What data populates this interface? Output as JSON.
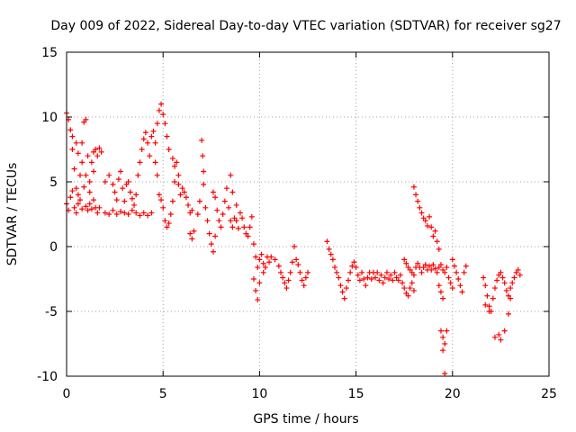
{
  "chart_data": {
    "type": "scatter",
    "title": "Day 009 of 2022, Sidereal Day-to-day VTEC variation (SDTVAR) for receiver sg27",
    "xlabel": "GPS time / hours",
    "ylabel": "SDTVAR / TECUs",
    "xlim": [
      0,
      25
    ],
    "ylim": [
      -10,
      15
    ],
    "xticks": [
      0,
      5,
      10,
      15,
      20,
      25
    ],
    "yticks": [
      -10,
      -5,
      0,
      5,
      10,
      15
    ],
    "xtick_labels": [
      "0",
      "5",
      "10",
      "15",
      "20",
      "25"
    ],
    "ytick_labels": [
      "-10",
      "-5",
      "0",
      "5",
      "10",
      "15"
    ],
    "grid": true,
    "marker": "+",
    "marker_color": "#ff0000",
    "series": [
      {
        "name": "SDTVAR",
        "points": [
          [
            0.0,
            10.3
          ],
          [
            0.1,
            9.8
          ],
          [
            0.2,
            9.0
          ],
          [
            0.3,
            7.5
          ],
          [
            0.4,
            6.0
          ],
          [
            0.5,
            4.5
          ],
          [
            0.6,
            3.3
          ],
          [
            0.7,
            5.5
          ],
          [
            0.8,
            8.0
          ],
          [
            0.9,
            9.6
          ],
          [
            1.0,
            9.8
          ],
          [
            1.1,
            7.0
          ],
          [
            1.2,
            5.0
          ],
          [
            1.3,
            6.5
          ],
          [
            1.4,
            7.3
          ],
          [
            1.5,
            7.5
          ],
          [
            1.6,
            7.0
          ],
          [
            1.7,
            7.6
          ],
          [
            1.8,
            7.3
          ],
          [
            0.0,
            3.3
          ],
          [
            0.1,
            2.8
          ],
          [
            0.2,
            3.8
          ],
          [
            0.3,
            4.3
          ],
          [
            0.4,
            3.0
          ],
          [
            0.5,
            2.6
          ],
          [
            0.6,
            4.0
          ],
          [
            0.7,
            3.6
          ],
          [
            0.8,
            2.9
          ],
          [
            0.9,
            4.6
          ],
          [
            1.0,
            3.1
          ],
          [
            1.1,
            2.8
          ],
          [
            1.2,
            3.3
          ],
          [
            1.3,
            2.9
          ],
          [
            1.4,
            3.6
          ],
          [
            1.5,
            3.0
          ],
          [
            1.6,
            2.6
          ],
          [
            1.7,
            3.0
          ],
          [
            0.3,
            8.5
          ],
          [
            0.5,
            8.0
          ],
          [
            0.6,
            7.2
          ],
          [
            0.8,
            6.5
          ],
          [
            1.0,
            5.5
          ],
          [
            1.2,
            4.2
          ],
          [
            1.4,
            5.8
          ],
          [
            2.0,
            2.6
          ],
          [
            2.2,
            2.5
          ],
          [
            2.4,
            2.8
          ],
          [
            2.6,
            2.5
          ],
          [
            2.8,
            2.7
          ],
          [
            3.0,
            2.6
          ],
          [
            3.2,
            2.5
          ],
          [
            3.4,
            2.8
          ],
          [
            3.6,
            2.6
          ],
          [
            3.8,
            2.4
          ],
          [
            4.0,
            2.6
          ],
          [
            4.2,
            2.4
          ],
          [
            4.4,
            2.6
          ],
          [
            2.0,
            5.0
          ],
          [
            2.2,
            5.5
          ],
          [
            2.4,
            4.8
          ],
          [
            2.5,
            4.2
          ],
          [
            2.6,
            3.6
          ],
          [
            2.7,
            5.2
          ],
          [
            2.8,
            5.8
          ],
          [
            2.9,
            4.5
          ],
          [
            3.0,
            3.5
          ],
          [
            3.1,
            4.8
          ],
          [
            3.2,
            5.0
          ],
          [
            3.3,
            4.2
          ],
          [
            3.4,
            3.7
          ],
          [
            3.5,
            3.2
          ],
          [
            3.6,
            4.0
          ],
          [
            3.7,
            5.5
          ],
          [
            3.8,
            6.5
          ],
          [
            3.9,
            7.5
          ],
          [
            4.0,
            8.3
          ],
          [
            4.1,
            8.8
          ],
          [
            4.2,
            8.0
          ],
          [
            4.3,
            7.0
          ],
          [
            4.4,
            8.5
          ],
          [
            4.5,
            8.9
          ],
          [
            4.6,
            8.0
          ],
          [
            4.7,
            9.5
          ],
          [
            4.8,
            10.5
          ],
          [
            4.9,
            11.0
          ],
          [
            5.0,
            10.2
          ],
          [
            5.1,
            9.5
          ],
          [
            5.2,
            8.5
          ],
          [
            5.3,
            7.5
          ],
          [
            4.6,
            6.5
          ],
          [
            4.7,
            5.5
          ],
          [
            4.8,
            4.0
          ],
          [
            4.9,
            3.6
          ],
          [
            5.0,
            3.0
          ],
          [
            5.1,
            2.0
          ],
          [
            5.2,
            1.5
          ],
          [
            5.3,
            1.8
          ],
          [
            5.4,
            2.5
          ],
          [
            5.5,
            3.5
          ],
          [
            5.6,
            5.0
          ],
          [
            5.7,
            6.5
          ],
          [
            5.8,
            4.8
          ],
          [
            5.9,
            4.0
          ],
          [
            5.5,
            6.8
          ],
          [
            5.6,
            6.2
          ],
          [
            5.8,
            5.5
          ],
          [
            6.0,
            4.5
          ],
          [
            6.1,
            4.2
          ],
          [
            6.2,
            3.8
          ],
          [
            6.3,
            3.2
          ],
          [
            6.4,
            2.6
          ],
          [
            6.5,
            2.8
          ],
          [
            6.4,
            1.0
          ],
          [
            6.5,
            0.6
          ],
          [
            6.6,
            1.2
          ],
          [
            6.8,
            2.5
          ],
          [
            6.9,
            3.5
          ],
          [
            7.0,
            8.2
          ],
          [
            7.05,
            7.0
          ],
          [
            7.1,
            5.8
          ],
          [
            7.1,
            4.8
          ],
          [
            7.2,
            3.0
          ],
          [
            7.3,
            2.0
          ],
          [
            7.4,
            1.0
          ],
          [
            7.5,
            0.2
          ],
          [
            7.6,
            -0.4
          ],
          [
            7.7,
            0.8
          ],
          [
            7.6,
            4.2
          ],
          [
            7.7,
            3.8
          ],
          [
            7.8,
            2.8
          ],
          [
            7.9,
            2.0
          ],
          [
            8.0,
            1.5
          ],
          [
            8.1,
            2.5
          ],
          [
            8.2,
            3.5
          ],
          [
            8.3,
            4.5
          ],
          [
            8.4,
            3.0
          ],
          [
            8.5,
            2.0
          ],
          [
            8.6,
            1.5
          ],
          [
            8.7,
            2.2
          ],
          [
            8.8,
            2.0
          ],
          [
            8.9,
            1.4
          ],
          [
            8.5,
            5.5
          ],
          [
            8.6,
            4.2
          ],
          [
            8.8,
            3.2
          ],
          [
            9.0,
            2.6
          ],
          [
            9.1,
            2.2
          ],
          [
            9.2,
            1.5
          ],
          [
            9.3,
            1.0
          ],
          [
            9.4,
            0.8
          ],
          [
            9.5,
            1.5
          ],
          [
            9.6,
            2.3
          ],
          [
            9.7,
            0.2
          ],
          [
            9.8,
            -0.8
          ],
          [
            9.9,
            -1.6
          ],
          [
            10.0,
            -1.0
          ],
          [
            10.1,
            -0.6
          ],
          [
            10.2,
            -1.3
          ],
          [
            10.3,
            -1.6
          ],
          [
            10.4,
            -0.8
          ],
          [
            10.5,
            -1.2
          ],
          [
            9.7,
            -2.5
          ],
          [
            9.8,
            -3.4
          ],
          [
            9.9,
            -4.1
          ],
          [
            10.0,
            -2.8
          ],
          [
            10.2,
            -2.0
          ],
          [
            10.6,
            -0.8
          ],
          [
            10.8,
            -1.0
          ],
          [
            11.0,
            -1.5
          ],
          [
            11.1,
            -2.0
          ],
          [
            11.2,
            -2.4
          ],
          [
            11.3,
            -2.8
          ],
          [
            11.4,
            -3.2
          ],
          [
            11.5,
            -2.6
          ],
          [
            11.6,
            -2.0
          ],
          [
            11.7,
            -1.2
          ],
          [
            11.8,
            0.0
          ],
          [
            11.9,
            -1.0
          ],
          [
            12.0,
            -1.4
          ],
          [
            12.1,
            -2.0
          ],
          [
            12.2,
            -2.6
          ],
          [
            12.3,
            -3.0
          ],
          [
            12.4,
            -2.4
          ],
          [
            12.5,
            -2.0
          ],
          [
            13.5,
            0.4
          ],
          [
            13.6,
            -0.2
          ],
          [
            13.7,
            -0.6
          ],
          [
            13.8,
            -1.0
          ],
          [
            13.9,
            -1.6
          ],
          [
            14.0,
            -2.0
          ],
          [
            14.1,
            -2.4
          ],
          [
            14.2,
            -3.0
          ],
          [
            14.3,
            -3.5
          ],
          [
            14.4,
            -4.0
          ],
          [
            14.5,
            -3.2
          ],
          [
            14.6,
            -2.6
          ],
          [
            14.7,
            -2.0
          ],
          [
            14.8,
            -1.5
          ],
          [
            14.9,
            -1.2
          ],
          [
            15.0,
            -1.6
          ],
          [
            15.1,
            -2.2
          ],
          [
            15.2,
            -2.6
          ],
          [
            15.3,
            -2.0
          ],
          [
            15.4,
            -2.5
          ],
          [
            15.5,
            -3.0
          ],
          [
            15.6,
            -2.4
          ],
          [
            15.7,
            -2.0
          ],
          [
            15.8,
            -2.5
          ],
          [
            15.9,
            -2.0
          ],
          [
            16.0,
            -2.4
          ],
          [
            16.1,
            -2.0
          ],
          [
            16.2,
            -2.6
          ],
          [
            16.3,
            -2.2
          ],
          [
            16.4,
            -2.8
          ],
          [
            16.5,
            -2.4
          ],
          [
            16.6,
            -2.0
          ],
          [
            16.7,
            -2.5
          ],
          [
            16.8,
            -2.2
          ],
          [
            16.9,
            -2.6
          ],
          [
            17.0,
            -2.0
          ],
          [
            17.1,
            -2.4
          ],
          [
            17.2,
            -2.6
          ],
          [
            17.3,
            -2.2
          ],
          [
            17.4,
            -2.8
          ],
          [
            17.5,
            -3.2
          ],
          [
            17.6,
            -3.6
          ],
          [
            17.7,
            -3.8
          ],
          [
            17.8,
            -3.2
          ],
          [
            17.9,
            -2.8
          ],
          [
            18.0,
            -3.4
          ],
          [
            18.0,
            4.6
          ],
          [
            18.1,
            4.0
          ],
          [
            18.2,
            3.5
          ],
          [
            18.3,
            3.0
          ],
          [
            18.4,
            2.6
          ],
          [
            18.5,
            2.2
          ],
          [
            18.6,
            2.0
          ],
          [
            18.7,
            1.6
          ],
          [
            18.8,
            2.3
          ],
          [
            18.9,
            1.5
          ],
          [
            19.0,
            0.8
          ],
          [
            19.1,
            1.2
          ],
          [
            19.2,
            0.4
          ],
          [
            19.3,
            -0.2
          ],
          [
            17.5,
            -1.0
          ],
          [
            17.6,
            -1.3
          ],
          [
            17.7,
            -1.6
          ],
          [
            17.8,
            -1.8
          ],
          [
            17.9,
            -2.0
          ],
          [
            18.0,
            -2.2
          ],
          [
            18.1,
            -1.6
          ],
          [
            18.2,
            -1.3
          ],
          [
            18.3,
            -1.6
          ],
          [
            18.4,
            -2.0
          ],
          [
            18.5,
            -1.6
          ],
          [
            18.6,
            -1.4
          ],
          [
            18.7,
            -1.8
          ],
          [
            18.8,
            -1.5
          ],
          [
            18.9,
            -1.8
          ],
          [
            19.0,
            -1.4
          ],
          [
            19.1,
            -1.7
          ],
          [
            19.2,
            -2.0
          ],
          [
            19.3,
            -1.6
          ],
          [
            19.4,
            -1.4
          ],
          [
            19.5,
            -1.8
          ],
          [
            19.6,
            -2.0
          ],
          [
            19.7,
            -1.6
          ],
          [
            19.8,
            -2.4
          ],
          [
            19.9,
            -2.8
          ],
          [
            20.0,
            -3.2
          ],
          [
            19.3,
            -3.0
          ],
          [
            19.4,
            -3.5
          ],
          [
            19.5,
            -4.0
          ],
          [
            19.4,
            -6.5
          ],
          [
            19.5,
            -7.0
          ],
          [
            19.6,
            -7.5
          ],
          [
            19.7,
            -6.5
          ],
          [
            19.5,
            -8.0
          ],
          [
            19.6,
            -9.8
          ],
          [
            20.0,
            -1.0
          ],
          [
            20.1,
            -1.5
          ],
          [
            20.2,
            -2.0
          ],
          [
            20.3,
            -2.5
          ],
          [
            20.4,
            -3.0
          ],
          [
            20.5,
            -3.5
          ],
          [
            20.6,
            -2.0
          ],
          [
            20.7,
            -1.5
          ],
          [
            21.6,
            -2.4
          ],
          [
            21.7,
            -3.0
          ],
          [
            21.8,
            -3.8
          ],
          [
            21.9,
            -4.6
          ],
          [
            22.0,
            -5.0
          ],
          [
            22.1,
            -4.0
          ],
          [
            22.2,
            -3.2
          ],
          [
            22.3,
            -2.6
          ],
          [
            22.4,
            -2.2
          ],
          [
            22.5,
            -2.0
          ],
          [
            22.6,
            -2.4
          ],
          [
            22.7,
            -2.8
          ],
          [
            22.8,
            -3.4
          ],
          [
            22.9,
            -3.8
          ],
          [
            23.0,
            -3.2
          ],
          [
            23.1,
            -2.8
          ],
          [
            23.2,
            -2.4
          ],
          [
            23.3,
            -2.0
          ],
          [
            23.4,
            -1.8
          ],
          [
            23.5,
            -2.2
          ],
          [
            21.7,
            -4.5
          ],
          [
            21.9,
            -5.0
          ],
          [
            22.2,
            -7.0
          ],
          [
            22.4,
            -6.8
          ],
          [
            22.5,
            -7.2
          ],
          [
            22.7,
            -6.5
          ],
          [
            22.9,
            -5.2
          ],
          [
            23.0,
            -4.0
          ]
        ]
      }
    ]
  }
}
